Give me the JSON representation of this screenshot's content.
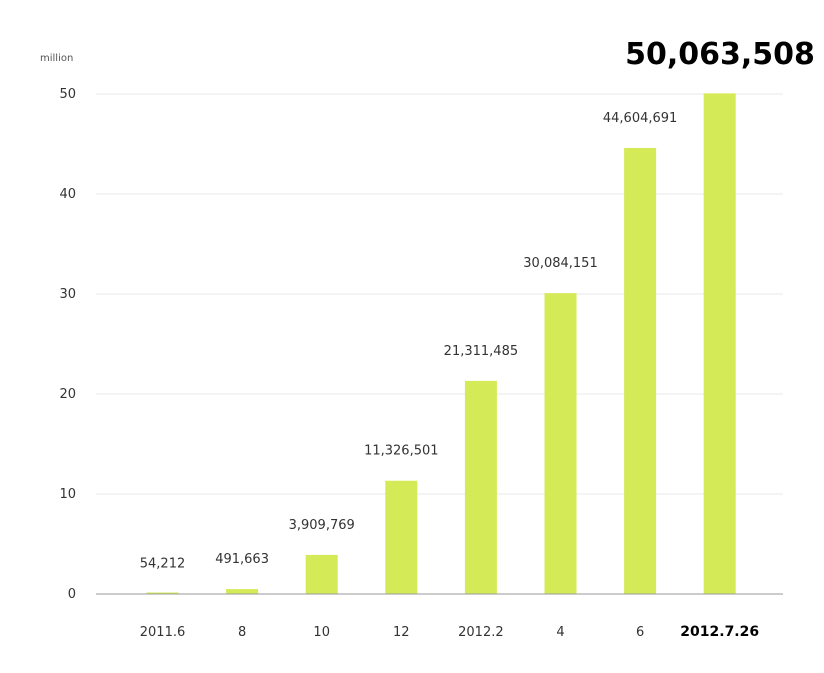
{
  "chart_data": {
    "type": "bar",
    "unit_label": "million",
    "categories": [
      "2011.6",
      "8",
      "10",
      "12",
      "2012.2",
      "4",
      "6",
      "2012.7.26"
    ],
    "values": [
      54212,
      491663,
      3909769,
      11326501,
      21311485,
      30084151,
      44604691,
      50063508
    ],
    "value_labels": [
      "54,212",
      "491,663",
      "3,909,769",
      "11,326,501",
      "21,311,485",
      "30,084,151",
      "44,604,691",
      "50,063,508"
    ],
    "y_ticks": [
      0,
      10,
      20,
      30,
      40,
      50
    ],
    "y_tick_scale": 1000000,
    "ylim": [
      0,
      50000000
    ],
    "grid": true,
    "bar_color": "#d4ea57",
    "grid_color": "#e8e8e8",
    "axis_color": "#9a9a9a"
  }
}
